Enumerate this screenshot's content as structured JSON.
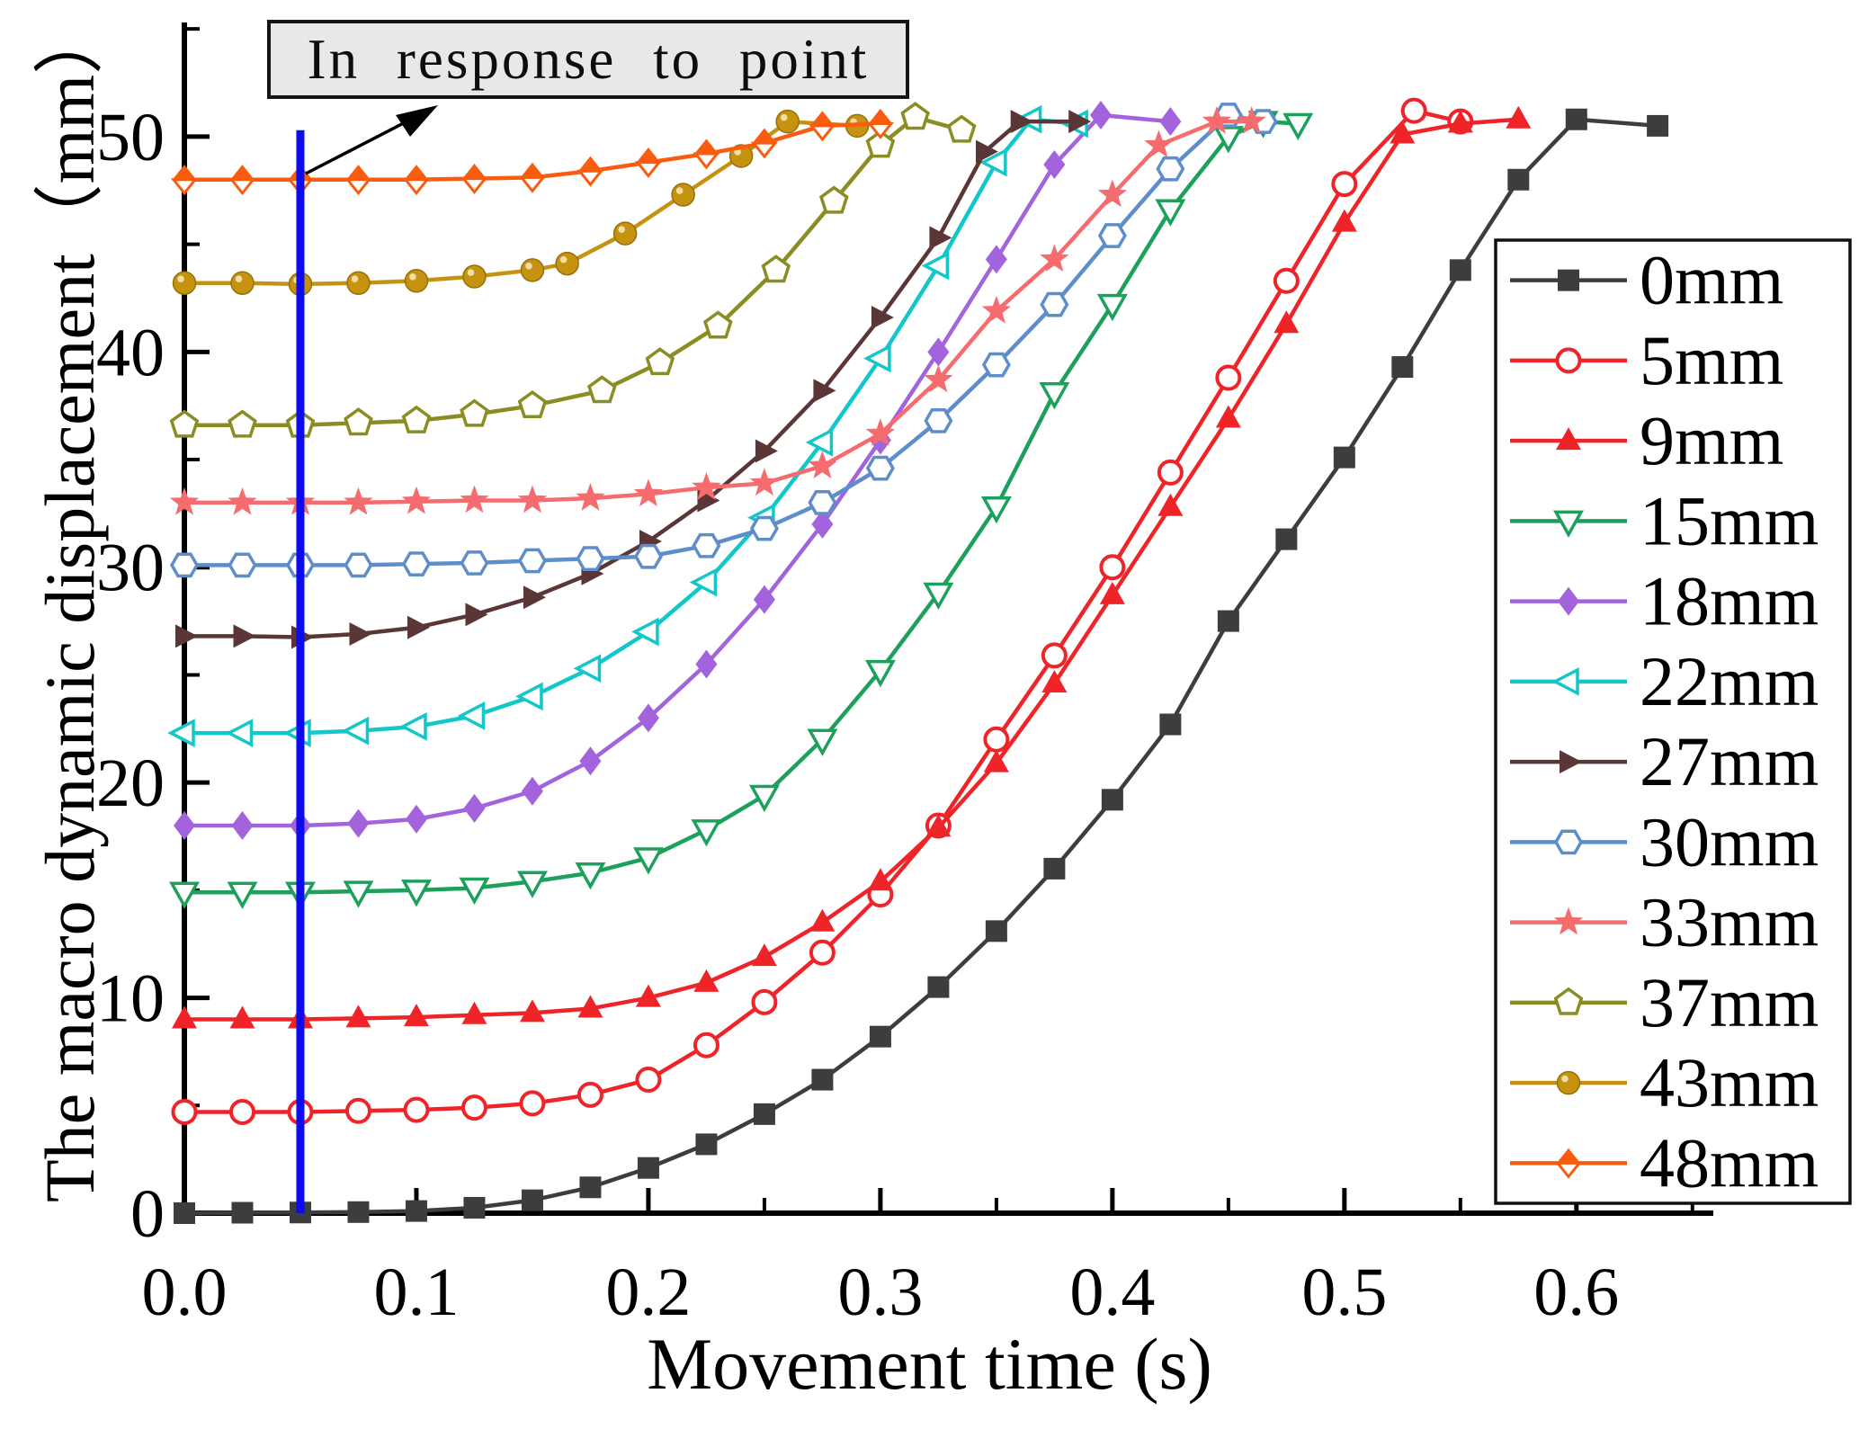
{
  "annotation": {
    "text": "In response to point",
    "box_fill": "#e8e8e8"
  },
  "chart_data": {
    "type": "line",
    "title": "",
    "xlabel": "Movement time (s)",
    "ylabel": "The macro dynamic displacement（mm）",
    "xlim": [
      0,
      0.659
    ],
    "ylim": [
      0,
      55.3
    ],
    "grid": false,
    "legend_position": "right",
    "xtick_labels": [
      "0.0",
      "0.1",
      "0.2",
      "0.3",
      "0.4",
      "0.5",
      "0.6"
    ],
    "xtick_values": [
      0,
      0.1,
      0.2,
      0.3,
      0.4,
      0.5,
      0.6
    ],
    "xminor_values": [
      0.05,
      0.15,
      0.25,
      0.35,
      0.45,
      0.55,
      0.65
    ],
    "ytick_labels": [
      "0",
      "10",
      "20",
      "30",
      "40",
      "50"
    ],
    "ytick_values": [
      0,
      10,
      20,
      30,
      40,
      50
    ],
    "yminor_values": [
      5,
      15,
      25,
      35,
      45,
      55
    ],
    "response_line": {
      "x": 0.05,
      "y_from": 0,
      "y_to": 50.3,
      "color": "#0b0bee"
    },
    "series": [
      {
        "name": "0mm",
        "color": "#3d3d3d",
        "marker": "square",
        "points": [
          [
            0,
            0
          ],
          [
            0.025,
            0.02
          ],
          [
            0.05,
            0.03
          ],
          [
            0.075,
            0.05
          ],
          [
            0.1,
            0.1
          ],
          [
            0.125,
            0.25
          ],
          [
            0.15,
            0.6
          ],
          [
            0.175,
            1.2
          ],
          [
            0.2,
            2.1
          ],
          [
            0.225,
            3.2
          ],
          [
            0.25,
            4.6
          ],
          [
            0.275,
            6.2
          ],
          [
            0.3,
            8.2
          ],
          [
            0.325,
            10.5
          ],
          [
            0.35,
            13.1
          ],
          [
            0.375,
            16.0
          ],
          [
            0.4,
            19.2
          ],
          [
            0.425,
            22.7
          ],
          [
            0.45,
            27.5
          ],
          [
            0.475,
            31.3
          ],
          [
            0.5,
            35.1
          ],
          [
            0.525,
            39.3
          ],
          [
            0.55,
            43.8
          ],
          [
            0.575,
            48.0
          ],
          [
            0.6,
            50.8
          ],
          [
            0.635,
            50.5
          ]
        ]
      },
      {
        "name": "5mm",
        "color": "#ee2429",
        "marker": "circle-open",
        "points": [
          [
            0,
            4.7
          ],
          [
            0.025,
            4.7
          ],
          [
            0.05,
            4.7
          ],
          [
            0.075,
            4.75
          ],
          [
            0.1,
            4.8
          ],
          [
            0.125,
            4.9
          ],
          [
            0.15,
            5.1
          ],
          [
            0.175,
            5.5
          ],
          [
            0.2,
            6.2
          ],
          [
            0.225,
            7.8
          ],
          [
            0.25,
            9.8
          ],
          [
            0.275,
            12.1
          ],
          [
            0.3,
            14.8
          ],
          [
            0.325,
            18.0
          ],
          [
            0.35,
            22.0
          ],
          [
            0.375,
            25.9
          ],
          [
            0.4,
            30.0
          ],
          [
            0.425,
            34.4
          ],
          [
            0.45,
            38.8
          ],
          [
            0.475,
            43.3
          ],
          [
            0.5,
            47.8
          ],
          [
            0.53,
            51.2
          ],
          [
            0.55,
            50.7
          ]
        ]
      },
      {
        "name": "9mm",
        "color": "#ee2429",
        "marker": "triangle-up",
        "points": [
          [
            0,
            9
          ],
          [
            0.025,
            9
          ],
          [
            0.05,
            9
          ],
          [
            0.075,
            9.05
          ],
          [
            0.1,
            9.1
          ],
          [
            0.125,
            9.2
          ],
          [
            0.15,
            9.3
          ],
          [
            0.175,
            9.5
          ],
          [
            0.2,
            10.0
          ],
          [
            0.225,
            10.7
          ],
          [
            0.25,
            11.9
          ],
          [
            0.275,
            13.5
          ],
          [
            0.3,
            15.4
          ],
          [
            0.325,
            17.9
          ],
          [
            0.35,
            20.9
          ],
          [
            0.375,
            24.6
          ],
          [
            0.4,
            28.7
          ],
          [
            0.425,
            32.8
          ],
          [
            0.45,
            36.9
          ],
          [
            0.475,
            41.3
          ],
          [
            0.5,
            46.0
          ],
          [
            0.525,
            50.1
          ],
          [
            0.55,
            50.6
          ],
          [
            0.575,
            50.8
          ]
        ]
      },
      {
        "name": "15mm",
        "color": "#1ca05c",
        "marker": "triangle-down-open",
        "points": [
          [
            0,
            14.9
          ],
          [
            0.025,
            14.9
          ],
          [
            0.05,
            14.9
          ],
          [
            0.075,
            14.95
          ],
          [
            0.1,
            15.0
          ],
          [
            0.125,
            15.1
          ],
          [
            0.15,
            15.4
          ],
          [
            0.175,
            15.8
          ],
          [
            0.2,
            16.5
          ],
          [
            0.225,
            17.8
          ],
          [
            0.25,
            19.4
          ],
          [
            0.275,
            22.0
          ],
          [
            0.3,
            25.2
          ],
          [
            0.325,
            28.8
          ],
          [
            0.35,
            32.8
          ],
          [
            0.375,
            38.1
          ],
          [
            0.4,
            42.2
          ],
          [
            0.425,
            46.6
          ],
          [
            0.45,
            50.0
          ],
          [
            0.465,
            50.7
          ],
          [
            0.48,
            50.6
          ]
        ]
      },
      {
        "name": "18mm",
        "color": "#a263dd",
        "marker": "diamond",
        "points": [
          [
            0,
            18
          ],
          [
            0.025,
            18
          ],
          [
            0.05,
            18
          ],
          [
            0.075,
            18.1
          ],
          [
            0.1,
            18.3
          ],
          [
            0.125,
            18.8
          ],
          [
            0.15,
            19.6
          ],
          [
            0.175,
            21.0
          ],
          [
            0.2,
            23.0
          ],
          [
            0.225,
            25.5
          ],
          [
            0.25,
            28.5
          ],
          [
            0.275,
            32.0
          ],
          [
            0.3,
            35.9
          ],
          [
            0.325,
            40.0
          ],
          [
            0.35,
            44.3
          ],
          [
            0.375,
            48.7
          ],
          [
            0.395,
            51.0
          ],
          [
            0.425,
            50.7
          ]
        ]
      },
      {
        "name": "22mm",
        "color": "#12c7ca",
        "marker": "triangle-left-open",
        "points": [
          [
            0,
            22.3
          ],
          [
            0.025,
            22.3
          ],
          [
            0.05,
            22.3
          ],
          [
            0.075,
            22.4
          ],
          [
            0.1,
            22.6
          ],
          [
            0.125,
            23.1
          ],
          [
            0.15,
            24.0
          ],
          [
            0.175,
            25.3
          ],
          [
            0.2,
            27.0
          ],
          [
            0.225,
            29.3
          ],
          [
            0.25,
            32.3
          ],
          [
            0.275,
            35.8
          ],
          [
            0.3,
            39.7
          ],
          [
            0.325,
            44.0
          ],
          [
            0.35,
            48.8
          ],
          [
            0.365,
            50.8
          ],
          [
            0.385,
            50.6
          ]
        ]
      },
      {
        "name": "27mm",
        "color": "#5b3636",
        "marker": "triangle-right",
        "points": [
          [
            0,
            26.8
          ],
          [
            0.025,
            26.8
          ],
          [
            0.05,
            26.75
          ],
          [
            0.075,
            26.9
          ],
          [
            0.1,
            27.2
          ],
          [
            0.125,
            27.8
          ],
          [
            0.15,
            28.6
          ],
          [
            0.175,
            29.7
          ],
          [
            0.2,
            31.2
          ],
          [
            0.225,
            33.1
          ],
          [
            0.25,
            35.4
          ],
          [
            0.275,
            38.2
          ],
          [
            0.3,
            41.6
          ],
          [
            0.325,
            45.3
          ],
          [
            0.345,
            49.3
          ],
          [
            0.36,
            50.7
          ],
          [
            0.385,
            50.7
          ]
        ]
      },
      {
        "name": "30mm",
        "color": "#5e8ec9",
        "marker": "hexagon-open",
        "points": [
          [
            0,
            30.1
          ],
          [
            0.025,
            30.1
          ],
          [
            0.05,
            30.1
          ],
          [
            0.075,
            30.1
          ],
          [
            0.1,
            30.15
          ],
          [
            0.125,
            30.2
          ],
          [
            0.15,
            30.3
          ],
          [
            0.175,
            30.4
          ],
          [
            0.2,
            30.5
          ],
          [
            0.225,
            31.0
          ],
          [
            0.25,
            31.8
          ],
          [
            0.275,
            33.0
          ],
          [
            0.3,
            34.6
          ],
          [
            0.325,
            36.8
          ],
          [
            0.35,
            39.4
          ],
          [
            0.375,
            42.2
          ],
          [
            0.4,
            45.4
          ],
          [
            0.425,
            48.5
          ],
          [
            0.45,
            51.0
          ],
          [
            0.465,
            50.7
          ]
        ]
      },
      {
        "name": "33mm",
        "color": "#f56b6e",
        "marker": "star",
        "points": [
          [
            0,
            33
          ],
          [
            0.025,
            33
          ],
          [
            0.05,
            33
          ],
          [
            0.075,
            33
          ],
          [
            0.1,
            33.05
          ],
          [
            0.125,
            33.1
          ],
          [
            0.15,
            33.1
          ],
          [
            0.175,
            33.2
          ],
          [
            0.2,
            33.4
          ],
          [
            0.225,
            33.7
          ],
          [
            0.25,
            33.9
          ],
          [
            0.275,
            34.7
          ],
          [
            0.3,
            36.2
          ],
          [
            0.325,
            38.7
          ],
          [
            0.35,
            41.9
          ],
          [
            0.375,
            44.3
          ],
          [
            0.4,
            47.3
          ],
          [
            0.42,
            49.6
          ],
          [
            0.445,
            50.7
          ],
          [
            0.46,
            50.7
          ]
        ]
      },
      {
        "name": "37mm",
        "color": "#8b8c22",
        "marker": "pentagon-open",
        "points": [
          [
            0,
            36.6
          ],
          [
            0.025,
            36.6
          ],
          [
            0.05,
            36.6
          ],
          [
            0.075,
            36.7
          ],
          [
            0.1,
            36.8
          ],
          [
            0.125,
            37.1
          ],
          [
            0.15,
            37.5
          ],
          [
            0.18,
            38.2
          ],
          [
            0.205,
            39.5
          ],
          [
            0.23,
            41.2
          ],
          [
            0.255,
            43.8
          ],
          [
            0.28,
            47.0
          ],
          [
            0.3,
            49.6
          ],
          [
            0.315,
            50.9
          ],
          [
            0.335,
            50.3
          ]
        ]
      },
      {
        "name": "43mm",
        "color": "#c69310",
        "marker": "ball",
        "points": [
          [
            0,
            43.2
          ],
          [
            0.025,
            43.2
          ],
          [
            0.05,
            43.15
          ],
          [
            0.075,
            43.2
          ],
          [
            0.1,
            43.3
          ],
          [
            0.125,
            43.5
          ],
          [
            0.15,
            43.8
          ],
          [
            0.165,
            44.1
          ],
          [
            0.19,
            45.5
          ],
          [
            0.215,
            47.3
          ],
          [
            0.24,
            49.1
          ],
          [
            0.26,
            50.7
          ],
          [
            0.29,
            50.5
          ]
        ]
      },
      {
        "name": "48mm",
        "color": "#f95c0f",
        "marker": "diamond-half",
        "points": [
          [
            0,
            48
          ],
          [
            0.025,
            48
          ],
          [
            0.05,
            48
          ],
          [
            0.075,
            48
          ],
          [
            0.1,
            48.0
          ],
          [
            0.125,
            48.05
          ],
          [
            0.15,
            48.1
          ],
          [
            0.175,
            48.4
          ],
          [
            0.2,
            48.8
          ],
          [
            0.225,
            49.2
          ],
          [
            0.25,
            49.7
          ],
          [
            0.275,
            50.5
          ],
          [
            0.3,
            50.6
          ]
        ]
      }
    ]
  }
}
